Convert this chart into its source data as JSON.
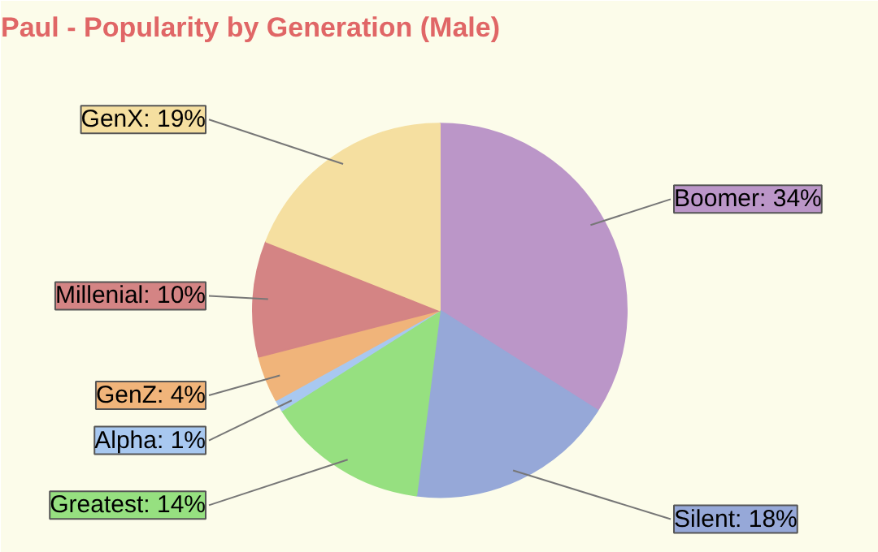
{
  "chart_data": {
    "type": "pie",
    "title": "Paul - Popularity by Generation (Male)",
    "categories": [
      "Boomer",
      "Silent",
      "Greatest",
      "Alpha",
      "GenZ",
      "Millenial",
      "GenX"
    ],
    "values": [
      34,
      18,
      14,
      1,
      4,
      10,
      19
    ],
    "value_labels": [
      "34%",
      "18%",
      "14%",
      "1%",
      "4%",
      "10%",
      "19%"
    ],
    "colors": [
      "#bb96c8",
      "#96a8d8",
      "#96e080",
      "#a8c8f0",
      "#f0b47a",
      "#d48484",
      "#f5dfa0"
    ]
  }
}
